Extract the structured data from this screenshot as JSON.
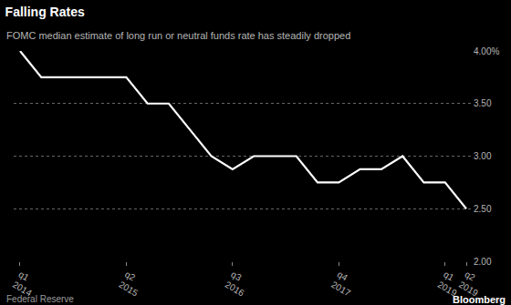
{
  "chart_data": {
    "type": "line",
    "title": "Falling Rates",
    "subtitle": "FOMC median estimate of long run or neutral funds rate has steadily dropped",
    "annotations": [
      "Federal Reserve",
      "Bloomberg"
    ],
    "categories": [
      "q1\n2014",
      null,
      null,
      null,
      null,
      "q2\n2015",
      null,
      null,
      null,
      null,
      "q3\n2016",
      null,
      null,
      null,
      null,
      "q4\n2017",
      null,
      null,
      null,
      null,
      "q1\n2019",
      "q2\n2019"
    ],
    "values": [
      4.0,
      3.75,
      3.75,
      3.75,
      3.75,
      3.75,
      3.5,
      3.5,
      3.25,
      3.0,
      2.875,
      3.0,
      3.0,
      3.0,
      2.75,
      2.75,
      2.875,
      2.875,
      3.0,
      2.75,
      2.75,
      2.5
    ],
    "color": "#ffffff",
    "ylim": [
      2.0,
      4.0
    ],
    "yticks": [
      {
        "value": 2.0,
        "label": "2.00"
      },
      {
        "value": 2.5,
        "label": "2.50"
      },
      {
        "value": 3.0,
        "label": "3.00"
      },
      {
        "value": 3.5,
        "label": "3.50"
      },
      {
        "value": 4.0,
        "label": "4.00%"
      }
    ],
    "grid": true
  }
}
